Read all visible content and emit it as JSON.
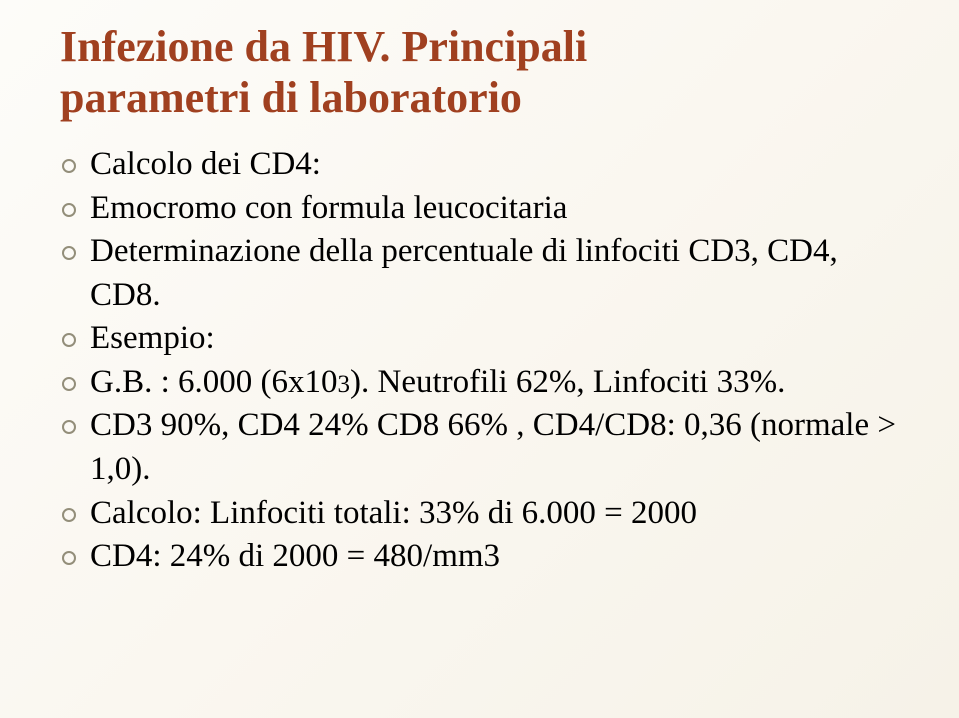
{
  "slide": {
    "title_line1": "Infezione da HIV. Principali",
    "title_line2": "parametri di laboratorio",
    "bullets": {
      "b1": "Calcolo dei CD4:",
      "b2": "Emocromo con formula leucocitaria",
      "b3": "Determinazione della percentuale di linfociti CD3, CD4, CD8.",
      "b4": "Esempio:",
      "b5_pre": "G.B. : 6.000 (6x10",
      "b5_sub": "3",
      "b5_post": "). Neutrofili 62%, Linfociti 33%.",
      "b6": " CD3 90%, CD4 24% CD8 66% , CD4/CD8: 0,36 (normale > 1,0).",
      "b7": "Calcolo: Linfociti totali: 33% di 6.000 = 2000",
      "b8": "CD4: 24% di 2000 = 480/mm3"
    },
    "colors": {
      "title_color": "#a04020",
      "text_color": "#000000",
      "bullet_border": "#938e7a",
      "bg_start": "#fdfcf9",
      "bg_end": "#f6f2e8"
    },
    "typography": {
      "title_fontsize": 44,
      "body_fontsize": 33,
      "font_family": "Georgia, serif"
    }
  }
}
